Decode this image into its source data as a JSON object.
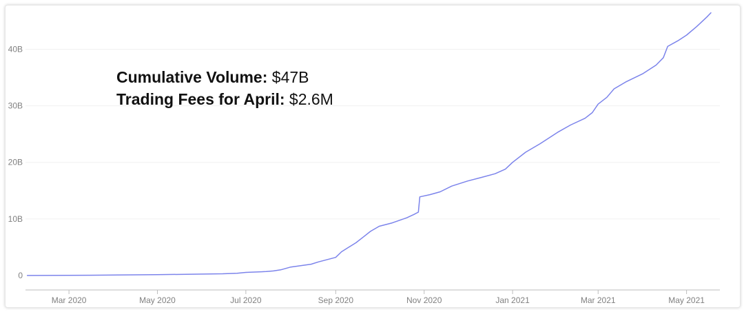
{
  "chart_data": {
    "type": "line",
    "title": "",
    "xlabel": "",
    "ylabel": "",
    "grid": true,
    "ylim": [
      0,
      47
    ],
    "y_unit": "B",
    "y_ticks": [
      0,
      10,
      20,
      30,
      40
    ],
    "y_tick_labels": [
      "0",
      "10B",
      "20B",
      "30B",
      "40B"
    ],
    "xlim": [
      "2020-01-31",
      "2021-05-24"
    ],
    "x_ticks": [
      "2020-03-01",
      "2020-05-01",
      "2020-07-01",
      "2020-09-01",
      "2020-11-01",
      "2021-01-01",
      "2021-03-01",
      "2021-05-01"
    ],
    "x_tick_labels": [
      "Mar 2020",
      "May 2020",
      "Jul 2020",
      "Sep 2020",
      "Nov 2020",
      "Jan 2021",
      "Mar 2021",
      "May 2021"
    ],
    "line_color": "#7b83eb",
    "series": [
      {
        "name": "",
        "x": [
          "2020-02-01",
          "2020-03-15",
          "2020-05-01",
          "2020-06-15",
          "2020-06-25",
          "2020-07-01",
          "2020-07-15",
          "2020-07-20",
          "2020-07-25",
          "2020-08-01",
          "2020-08-15",
          "2020-08-20",
          "2020-09-01",
          "2020-09-05",
          "2020-09-10",
          "2020-09-15",
          "2020-09-20",
          "2020-09-25",
          "2020-10-01",
          "2020-10-10",
          "2020-10-20",
          "2020-10-25",
          "2020-10-28",
          "2020-10-29",
          "2020-11-05",
          "2020-11-12",
          "2020-11-20",
          "2020-12-01",
          "2020-12-10",
          "2020-12-20",
          "2020-12-27",
          "2021-01-01",
          "2021-01-10",
          "2021-01-20",
          "2021-02-01",
          "2021-02-10",
          "2021-02-20",
          "2021-02-25",
          "2021-03-01",
          "2021-03-07",
          "2021-03-12",
          "2021-03-20",
          "2021-04-01",
          "2021-04-10",
          "2021-04-15",
          "2021-04-18",
          "2021-04-25",
          "2021-05-01",
          "2021-05-08",
          "2021-05-15",
          "2021-05-18"
        ],
        "values": [
          0,
          0.05,
          0.15,
          0.3,
          0.4,
          0.55,
          0.7,
          0.8,
          1.0,
          1.5,
          2.0,
          2.4,
          3.2,
          4.2,
          5.0,
          5.8,
          6.8,
          7.8,
          8.7,
          9.3,
          10.2,
          10.8,
          11.2,
          13.9,
          14.3,
          14.8,
          15.8,
          16.7,
          17.3,
          18.0,
          18.8,
          20.0,
          21.8,
          23.3,
          25.3,
          26.6,
          27.8,
          28.8,
          30.3,
          31.5,
          33.0,
          34.2,
          35.7,
          37.2,
          38.5,
          40.5,
          41.5,
          42.5,
          44.0,
          45.7,
          46.5
        ]
      }
    ]
  },
  "annotations": {
    "line1_label": "Cumulative Volume:",
    "line1_value": " $47B",
    "line2_label": "Trading Fees for April:",
    "line2_value": " $2.6M"
  }
}
